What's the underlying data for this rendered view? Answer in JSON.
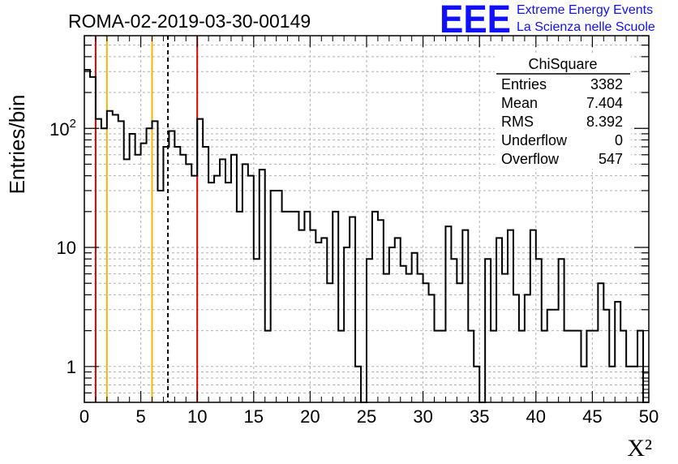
{
  "chart_data": {
    "type": "histogram",
    "title": "ROMA-02-2019-03-30-00149",
    "xlabel": "X²",
    "ylabel": "Entries/bin",
    "xlim": [
      0,
      50
    ],
    "ylim": [
      0.5,
      600
    ],
    "y_scale": "log",
    "grid": true,
    "bin_width": 0.5,
    "x_ticks": [
      "0",
      "5",
      "10",
      "15",
      "20",
      "25",
      "30",
      "35",
      "40",
      "45",
      "50"
    ],
    "y_ticks": [
      {
        "value": 1,
        "label": "1"
      },
      {
        "value": 10,
        "label": "10"
      },
      {
        "value": 100,
        "label": "10",
        "exponent": "2"
      }
    ],
    "values": [
      310,
      270,
      120,
      100,
      140,
      130,
      115,
      55,
      90,
      60,
      75,
      100,
      115,
      30,
      70,
      95,
      70,
      60,
      50,
      40,
      120,
      70,
      35,
      40,
      55,
      35,
      60,
      20,
      50,
      40,
      8,
      45,
      2,
      30,
      30,
      20,
      20,
      20,
      14,
      20,
      14,
      11,
      12,
      5,
      20,
      2,
      10,
      18,
      1,
      0.5,
      8,
      20,
      17,
      6,
      10,
      12,
      7,
      6,
      9,
      6,
      5,
      4,
      2,
      2,
      15,
      8,
      5,
      14,
      2,
      1,
      0.5,
      8,
      2,
      12,
      6,
      14,
      4,
      2,
      4,
      14,
      8,
      2,
      3,
      3,
      8,
      2,
      2,
      2,
      1,
      2,
      2,
      5,
      3,
      1,
      3.5,
      2,
      1,
      1,
      2,
      0.5
    ],
    "vlines": [
      {
        "x": 1,
        "color": "#e00000",
        "style": "solid"
      },
      {
        "x": 2,
        "color": "#f5b800",
        "style": "solid"
      },
      {
        "x": 6,
        "color": "#f5b800",
        "style": "solid"
      },
      {
        "x": 7.404,
        "color": "#000000",
        "style": "dashed"
      },
      {
        "x": 10,
        "color": "#e00000",
        "style": "solid"
      }
    ],
    "stats": {
      "name": "ChiSquare",
      "rows": [
        {
          "label": "Entries",
          "value": "3382"
        },
        {
          "label": "Mean",
          "value": "7.404"
        },
        {
          "label": "RMS",
          "value": "8.392"
        },
        {
          "label": "Underflow",
          "value": "0"
        },
        {
          "label": "Overflow",
          "value": "547"
        }
      ]
    }
  },
  "logo": {
    "mark": "EEE",
    "line1": "Extreme Energy Events",
    "line2": "La Scienza nelle Scuole",
    "color": "#1010ff"
  }
}
